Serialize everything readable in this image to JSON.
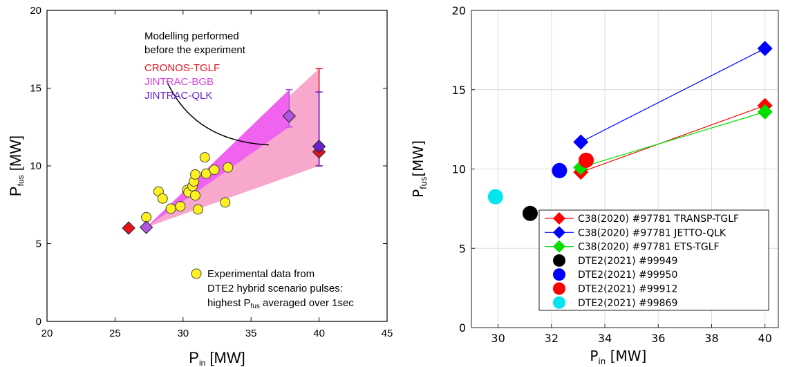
{
  "chart_data": [
    {
      "type": "scatter",
      "xlabel": "P",
      "xlabel_sub": "in",
      "xlabel_unit": " [MW]",
      "ylabel": "P",
      "ylabel_sub": "fus",
      "ylabel_unit": " [MW]",
      "xlim": [
        20,
        45
      ],
      "ylim": [
        0,
        20
      ],
      "xticks": [
        20,
        25,
        30,
        35,
        40,
        45
      ],
      "yticks": [
        0,
        5,
        10,
        15,
        20
      ],
      "grid": false,
      "annotation": {
        "line1": "Modelling performed",
        "line2": "before the experiment"
      },
      "legend_labels": [
        {
          "name": "CRONOS-TGLF",
          "color": "#e4131b"
        },
        {
          "name": "JINTRAC-BGB",
          "color": "#d93fe0"
        },
        {
          "name": "JINTRAC-QLK",
          "color": "#6a1fd0"
        }
      ],
      "experimental_legend": {
        "line1": "Experimental data from",
        "line2": "DTE2 hybrid scenario pulses:",
        "line3_pre": "highest P",
        "line3_sub": "fus",
        "line3_post": " averaged over 1sec"
      },
      "experimental_points": [
        [
          27.3,
          6.7
        ],
        [
          28.2,
          8.35
        ],
        [
          28.5,
          7.9
        ],
        [
          29.1,
          7.25
        ],
        [
          29.8,
          7.4
        ],
        [
          30.3,
          8.45
        ],
        [
          30.4,
          8.3
        ],
        [
          30.7,
          8.7
        ],
        [
          30.8,
          9.0
        ],
        [
          30.9,
          8.1
        ],
        [
          30.9,
          9.45
        ],
        [
          31.1,
          7.2
        ],
        [
          31.6,
          10.55
        ],
        [
          31.7,
          9.5
        ],
        [
          32.3,
          9.75
        ],
        [
          33.1,
          7.65
        ],
        [
          33.3,
          9.9
        ]
      ],
      "series": [
        {
          "name": "CRONOS-TGLF",
          "color": "#e4131b",
          "points": [
            [
              26.0,
              6.0
            ],
            [
              40.0,
              10.9
            ]
          ],
          "error": {
            "x": 40.0,
            "low": 10.0,
            "high": 16.25
          }
        },
        {
          "name": "JINTRAC-BGB",
          "color": "#b254e0",
          "points": [
            [
              27.3,
              6.05
            ],
            [
              37.8,
              13.2
            ]
          ],
          "error": {
            "x": 37.8,
            "low": 12.5,
            "high": 14.9
          }
        },
        {
          "name": "JINTRAC-QLK",
          "color": "#6a1fd0",
          "points": [
            [
              40.0,
              11.25
            ]
          ],
          "error": {
            "x": 40.0,
            "low": 10.0,
            "high": 14.75
          }
        }
      ],
      "bands": [
        {
          "name": "CRONOS-TGLF",
          "color": "#f7a8cc",
          "polygon": [
            [
              27.3,
              6.05
            ],
            [
              40.0,
              16.25
            ],
            [
              40.0,
              10.0
            ]
          ]
        },
        {
          "name": "JINTRAC-BGB",
          "color": "#ef63ee",
          "polygon": [
            [
              27.3,
              6.05
            ],
            [
              37.8,
              14.9
            ],
            [
              37.8,
              12.5
            ]
          ]
        }
      ]
    },
    {
      "type": "line",
      "xlabel": "P",
      "xlabel_sub": "in",
      "xlabel_unit": " [MW]",
      "ylabel": "P",
      "ylabel_sub": "fus",
      "ylabel_unit": "[MW]",
      "xlim": [
        29,
        40.5
      ],
      "ylim": [
        0,
        20
      ],
      "xticks": [
        30,
        32,
        34,
        36,
        38,
        40
      ],
      "yticks": [
        0,
        5,
        10,
        15,
        20
      ],
      "grid": true,
      "legend_position": "bottom-right",
      "series": [
        {
          "name": "C38(2020) #97781 TRANSP-TGLF",
          "color": "#ff0000",
          "marker": "diamond",
          "x": [
            33.1,
            40.0
          ],
          "y": [
            9.8,
            14.0
          ]
        },
        {
          "name": "C38(2020) #97781 JETTO-QLK",
          "color": "#0000ff",
          "marker": "diamond",
          "x": [
            33.1,
            40.0
          ],
          "y": [
            11.7,
            17.6
          ]
        },
        {
          "name": "C38(2020) #97781 ETS-TGLF",
          "color": "#00e000",
          "marker": "diamond",
          "x": [
            33.1,
            40.0
          ],
          "y": [
            10.1,
            13.6
          ]
        },
        {
          "name": "DTE2(2021) #99949",
          "color": "#000000",
          "marker": "circle",
          "x": [
            31.2
          ],
          "y": [
            7.2
          ]
        },
        {
          "name": "DTE2(2021) #99950",
          "color": "#0000ff",
          "marker": "circle",
          "x": [
            32.3
          ],
          "y": [
            9.9
          ]
        },
        {
          "name": "DTE2(2021) #99912",
          "color": "#ff0000",
          "marker": "circle",
          "x": [
            33.3
          ],
          "y": [
            10.55
          ]
        },
        {
          "name": "DTE2(2021) #99869",
          "color": "#00e5ee",
          "marker": "circle",
          "x": [
            29.9
          ],
          "y": [
            8.25
          ]
        }
      ]
    }
  ]
}
